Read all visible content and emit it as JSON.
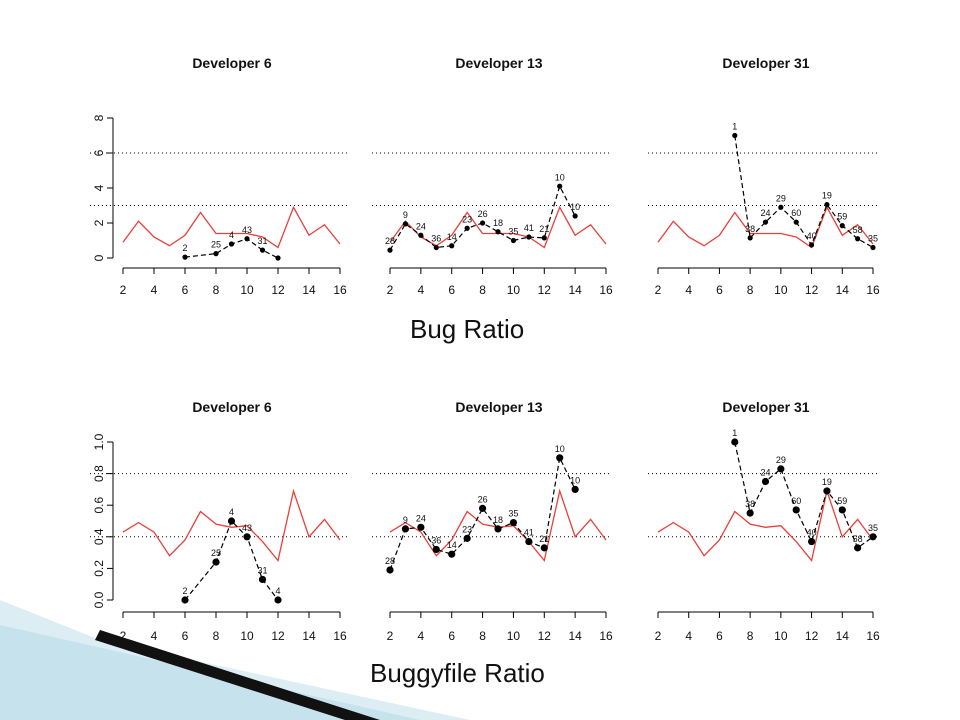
{
  "captions": {
    "top": "Bug Ratio",
    "bottom": "Buggyfile Ratio"
  },
  "colors": {
    "reference_line": "#e8403a",
    "series": "#000000",
    "axis": "#000000",
    "grid": "#000000"
  },
  "chart_data": [
    {
      "type": "line",
      "title": "Developer 6",
      "xlabel": "",
      "ylabel": "",
      "x_ticks": [
        2,
        4,
        6,
        8,
        10,
        12,
        14,
        16
      ],
      "xlim": [
        2,
        16
      ],
      "ylim": [
        0,
        8
      ],
      "y_ticks": [
        0,
        2,
        4,
        6,
        8
      ],
      "y_tick_labels": [
        "0",
        "2",
        "4",
        "6",
        "8"
      ],
      "h_dotted": [
        3,
        6
      ],
      "reference": {
        "x": [
          2,
          3,
          4,
          5,
          6,
          7,
          8,
          9,
          10,
          11,
          12,
          13,
          14,
          15,
          16
        ],
        "y": [
          0.9,
          2.1,
          1.2,
          0.7,
          1.3,
          2.6,
          1.4,
          1.4,
          1.4,
          1.2,
          0.6,
          2.9,
          1.3,
          1.9,
          0.8
        ]
      },
      "points": [
        {
          "x": 6,
          "y": 0.05,
          "label": "2"
        },
        {
          "x": 8,
          "y": 0.25,
          "label": "25"
        },
        {
          "x": 9,
          "y": 0.8,
          "label": "4"
        },
        {
          "x": 10,
          "y": 1.1,
          "label": "43"
        },
        {
          "x": 11,
          "y": 0.45,
          "label": "31"
        },
        {
          "x": 12,
          "y": 0.0,
          "label": ""
        }
      ]
    },
    {
      "type": "line",
      "title": "Developer 13",
      "xlabel": "",
      "ylabel": "",
      "x_ticks": [
        2,
        4,
        6,
        8,
        10,
        12,
        14,
        16
      ],
      "xlim": [
        2,
        16
      ],
      "ylim": [
        0,
        8
      ],
      "y_ticks": [
        0,
        2,
        4,
        6,
        8
      ],
      "y_tick_labels": [],
      "h_dotted": [
        3,
        6
      ],
      "reference": {
        "x": [
          2,
          3,
          4,
          5,
          6,
          7,
          8,
          9,
          10,
          11,
          12,
          13,
          14,
          15,
          16
        ],
        "y": [
          0.9,
          2.1,
          1.2,
          0.7,
          1.3,
          2.6,
          1.4,
          1.4,
          1.4,
          1.2,
          0.6,
          2.9,
          1.3,
          1.9,
          0.8
        ]
      },
      "points": [
        {
          "x": 2,
          "y": 0.45,
          "label": "28"
        },
        {
          "x": 3,
          "y": 1.95,
          "label": "9"
        },
        {
          "x": 4,
          "y": 1.3,
          "label": "24"
        },
        {
          "x": 5,
          "y": 0.6,
          "label": "36"
        },
        {
          "x": 6,
          "y": 0.7,
          "label": "14"
        },
        {
          "x": 7,
          "y": 1.7,
          "label": "23"
        },
        {
          "x": 8,
          "y": 2.0,
          "label": "26"
        },
        {
          "x": 9,
          "y": 1.5,
          "label": "18"
        },
        {
          "x": 10,
          "y": 1.0,
          "label": "35"
        },
        {
          "x": 11,
          "y": 1.2,
          "label": "41"
        },
        {
          "x": 12,
          "y": 1.15,
          "label": "21"
        },
        {
          "x": 13,
          "y": 4.1,
          "label": "10"
        },
        {
          "x": 14,
          "y": 2.4,
          "label": "10"
        }
      ]
    },
    {
      "type": "line",
      "title": "Developer 31",
      "xlabel": "",
      "ylabel": "",
      "x_ticks": [
        2,
        4,
        6,
        8,
        10,
        12,
        14,
        16
      ],
      "xlim": [
        2,
        16
      ],
      "ylim": [
        0,
        8
      ],
      "y_ticks": [
        0,
        2,
        4,
        6,
        8
      ],
      "y_tick_labels": [],
      "h_dotted": [
        3,
        6
      ],
      "reference": {
        "x": [
          2,
          3,
          4,
          5,
          6,
          7,
          8,
          9,
          10,
          11,
          12,
          13,
          14,
          15,
          16
        ],
        "y": [
          0.9,
          2.1,
          1.2,
          0.7,
          1.3,
          2.6,
          1.4,
          1.4,
          1.4,
          1.2,
          0.6,
          2.9,
          1.3,
          1.9,
          0.8
        ]
      },
      "points": [
        {
          "x": 7,
          "y": 7.0,
          "label": "1"
        },
        {
          "x": 8,
          "y": 1.15,
          "label": "38"
        },
        {
          "x": 9,
          "y": 2.05,
          "label": "24"
        },
        {
          "x": 10,
          "y": 2.9,
          "label": "29"
        },
        {
          "x": 11,
          "y": 2.05,
          "label": "60"
        },
        {
          "x": 12,
          "y": 0.75,
          "label": "40"
        },
        {
          "x": 13,
          "y": 3.05,
          "label": "19"
        },
        {
          "x": 14,
          "y": 1.85,
          "label": "59"
        },
        {
          "x": 15,
          "y": 1.1,
          "label": "58"
        },
        {
          "x": 16,
          "y": 0.6,
          "label": "35"
        }
      ]
    },
    {
      "type": "line",
      "title": "Developer 6",
      "xlabel": "",
      "ylabel": "",
      "x_ticks": [
        2,
        4,
        6,
        8,
        10,
        12,
        14,
        16
      ],
      "xlim": [
        2,
        16
      ],
      "ylim": [
        0,
        1.0
      ],
      "y_ticks": [
        0,
        0.2,
        0.4,
        0.6,
        0.8,
        1.0
      ],
      "y_tick_labels": [
        "0.0",
        "0.2",
        "0.4",
        "0.6",
        "0.8",
        "1.0"
      ],
      "h_dotted": [
        0.4,
        0.8
      ],
      "reference": {
        "x": [
          2,
          3,
          4,
          5,
          6,
          7,
          8,
          9,
          10,
          11,
          12,
          13,
          14,
          15,
          16
        ],
        "y": [
          0.43,
          0.49,
          0.43,
          0.28,
          0.38,
          0.56,
          0.48,
          0.46,
          0.47,
          0.37,
          0.25,
          0.69,
          0.4,
          0.51,
          0.38
        ]
      },
      "points": [
        {
          "x": 6,
          "y": 0.0,
          "label": "2"
        },
        {
          "x": 8,
          "y": 0.24,
          "label": "25"
        },
        {
          "x": 9,
          "y": 0.5,
          "label": "4"
        },
        {
          "x": 10,
          "y": 0.4,
          "label": "43"
        },
        {
          "x": 11,
          "y": 0.13,
          "label": "31"
        },
        {
          "x": 12,
          "y": 0.0,
          "label": "4"
        }
      ]
    },
    {
      "type": "line",
      "title": "Developer 13",
      "xlabel": "",
      "ylabel": "",
      "x_ticks": [
        2,
        4,
        6,
        8,
        10,
        12,
        14,
        16
      ],
      "xlim": [
        2,
        16
      ],
      "ylim": [
        0,
        1.0
      ],
      "y_ticks": [
        0,
        0.2,
        0.4,
        0.6,
        0.8,
        1.0
      ],
      "y_tick_labels": [],
      "h_dotted": [
        0.4,
        0.8
      ],
      "reference": {
        "x": [
          2,
          3,
          4,
          5,
          6,
          7,
          8,
          9,
          10,
          11,
          12,
          13,
          14,
          15,
          16
        ],
        "y": [
          0.43,
          0.49,
          0.43,
          0.28,
          0.38,
          0.56,
          0.48,
          0.46,
          0.47,
          0.37,
          0.25,
          0.69,
          0.4,
          0.51,
          0.38
        ]
      },
      "points": [
        {
          "x": 2,
          "y": 0.19,
          "label": "28"
        },
        {
          "x": 3,
          "y": 0.45,
          "label": "9"
        },
        {
          "x": 4,
          "y": 0.46,
          "label": "24"
        },
        {
          "x": 5,
          "y": 0.32,
          "label": "36"
        },
        {
          "x": 6,
          "y": 0.29,
          "label": "14"
        },
        {
          "x": 7,
          "y": 0.39,
          "label": "23"
        },
        {
          "x": 8,
          "y": 0.58,
          "label": "26"
        },
        {
          "x": 9,
          "y": 0.45,
          "label": "18"
        },
        {
          "x": 10,
          "y": 0.49,
          "label": "35"
        },
        {
          "x": 11,
          "y": 0.37,
          "label": "41"
        },
        {
          "x": 12,
          "y": 0.33,
          "label": "21"
        },
        {
          "x": 13,
          "y": 0.9,
          "label": "10"
        },
        {
          "x": 14,
          "y": 0.7,
          "label": "10"
        }
      ]
    },
    {
      "type": "line",
      "title": "Developer 31",
      "xlabel": "",
      "ylabel": "",
      "x_ticks": [
        2,
        4,
        6,
        8,
        10,
        12,
        14,
        16
      ],
      "xlim": [
        2,
        16
      ],
      "ylim": [
        0,
        1.0
      ],
      "y_ticks": [
        0,
        0.2,
        0.4,
        0.6,
        0.8,
        1.0
      ],
      "y_tick_labels": [],
      "h_dotted": [
        0.4,
        0.8
      ],
      "reference": {
        "x": [
          2,
          3,
          4,
          5,
          6,
          7,
          8,
          9,
          10,
          11,
          12,
          13,
          14,
          15,
          16
        ],
        "y": [
          0.43,
          0.49,
          0.43,
          0.28,
          0.38,
          0.56,
          0.48,
          0.46,
          0.47,
          0.37,
          0.25,
          0.69,
          0.4,
          0.51,
          0.38
        ]
      },
      "points": [
        {
          "x": 7,
          "y": 1.0,
          "label": "1"
        },
        {
          "x": 8,
          "y": 0.55,
          "label": "38"
        },
        {
          "x": 9,
          "y": 0.75,
          "label": "24"
        },
        {
          "x": 10,
          "y": 0.83,
          "label": "29"
        },
        {
          "x": 11,
          "y": 0.57,
          "label": "60"
        },
        {
          "x": 12,
          "y": 0.37,
          "label": "40"
        },
        {
          "x": 13,
          "y": 0.69,
          "label": "19"
        },
        {
          "x": 14,
          "y": 0.57,
          "label": "59"
        },
        {
          "x": 15,
          "y": 0.33,
          "label": "58"
        },
        {
          "x": 16,
          "y": 0.4,
          "label": "35"
        }
      ]
    }
  ]
}
